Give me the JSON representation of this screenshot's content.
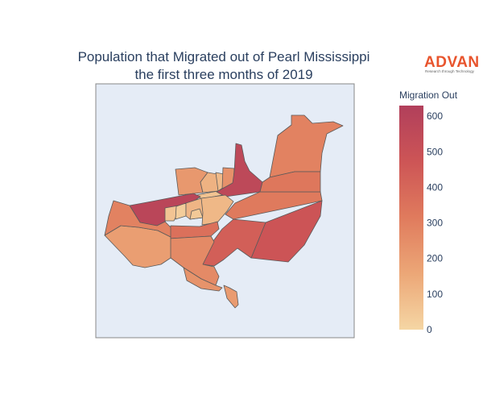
{
  "title": {
    "line1": "Population that Migrated out of Pearl Mississippi",
    "line2": "the first three months of 2019"
  },
  "logo": {
    "wordmark": "ADVAN",
    "tagline": "Research through Technology",
    "color": "#e8542d"
  },
  "colorbar": {
    "title": "Migration Out",
    "min": 0,
    "max": 630,
    "ticks": [
      "0",
      "100",
      "200",
      "300",
      "400",
      "500",
      "600"
    ],
    "colorscale": [
      "#f5d6a4",
      "#eca777",
      "#e07b5d",
      "#cd5556",
      "#b13f5b"
    ]
  },
  "map": {
    "background": "#e5ecf6",
    "frame_color": "#888888",
    "border_color": "#5a5a5a"
  },
  "chart_data": {
    "type": "choropleth",
    "title": "Population that Migrated out of Pearl Mississippi the first three months of 2019",
    "colorbar_title": "Migration Out",
    "range": [
      0,
      630
    ],
    "regions": [
      {
        "value": 290
      },
      {
        "value": 210
      },
      {
        "value": 120
      },
      {
        "value": 95
      },
      {
        "value": 65
      },
      {
        "value": 235
      },
      {
        "value": 560
      },
      {
        "value": 580
      },
      {
        "value": 60
      },
      {
        "value": 30
      },
      {
        "value": 110
      },
      {
        "value": 45
      },
      {
        "value": 100
      },
      {
        "value": 320
      },
      {
        "value": 360
      },
      {
        "value": 480
      },
      {
        "value": 430
      },
      {
        "value": 260
      },
      {
        "value": 330
      },
      {
        "value": 190
      },
      {
        "value": 230
      },
      {
        "value": 200
      }
    ]
  }
}
